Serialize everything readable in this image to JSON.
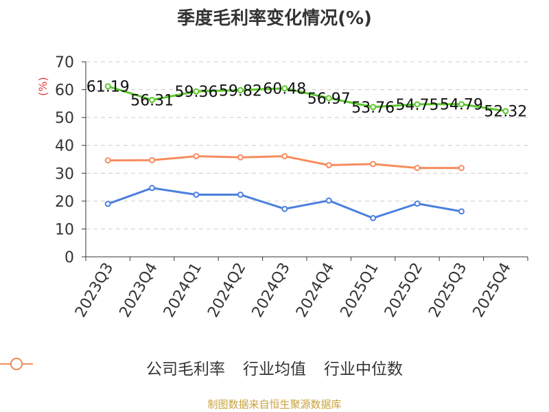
{
  "title": "季度毛利率变化情况(%)",
  "source": "制图数据来自恒生聚源数据库",
  "chart_data": {
    "type": "line",
    "title": "季度毛利率变化情况(%)",
    "ylabel": "(%)",
    "ylim": [
      0,
      70
    ],
    "yticks": [
      "0",
      "10",
      "20",
      "30",
      "40",
      "50",
      "60",
      "70"
    ],
    "categories": [
      "2023Q3",
      "2023Q4",
      "2024Q1",
      "2024Q2",
      "2024Q3",
      "2024Q4",
      "2025Q1",
      "2025Q2",
      "2025Q3",
      "2025Q4"
    ],
    "grid": true,
    "legend_position": "bottom",
    "series": [
      {
        "name": "公司毛利率",
        "color": "#5ac92a",
        "values": [
          61.19,
          56.31,
          59.36,
          59.82,
          60.48,
          56.97,
          53.76,
          54.75,
          54.79,
          52.32
        ],
        "labels": [
          "61.19",
          "56.31",
          "59.36",
          "59.82",
          "60.48",
          "56.97",
          "53.76",
          "54.75",
          "54.79",
          "52.32"
        ]
      },
      {
        "name": "行业均值",
        "color": "#4a7fde",
        "values": [
          19.0,
          24.7,
          22.3,
          22.3,
          17.2,
          20.2,
          13.9,
          19.1,
          16.3,
          null
        ]
      },
      {
        "name": "行业中位数",
        "color": "#f78c5c",
        "values": [
          34.6,
          34.7,
          36.1,
          35.7,
          36.1,
          32.9,
          33.3,
          31.9,
          31.9,
          null
        ]
      }
    ]
  }
}
